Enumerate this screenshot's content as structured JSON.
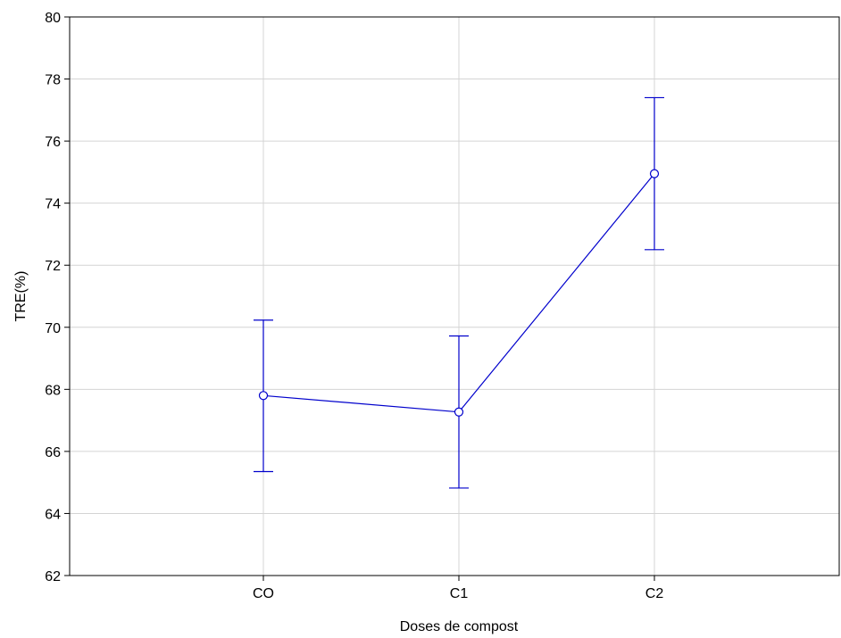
{
  "chart_data": {
    "type": "line",
    "title": "",
    "xlabel": "Doses  de compost",
    "ylabel": "TRE(%)",
    "categories": [
      "CO",
      "C1",
      "C2"
    ],
    "ylim": [
      62,
      80
    ],
    "y_ticks": [
      62,
      64,
      66,
      68,
      70,
      72,
      74,
      76,
      78,
      80
    ],
    "grid": true,
    "series": [
      {
        "values": [
          67.8,
          67.27,
          74.95
        ],
        "error_upper": [
          70.23,
          69.72,
          77.4
        ],
        "error_lower": [
          65.35,
          64.82,
          72.5
        ],
        "color": "#0000cc",
        "marker": "circle"
      }
    ]
  }
}
